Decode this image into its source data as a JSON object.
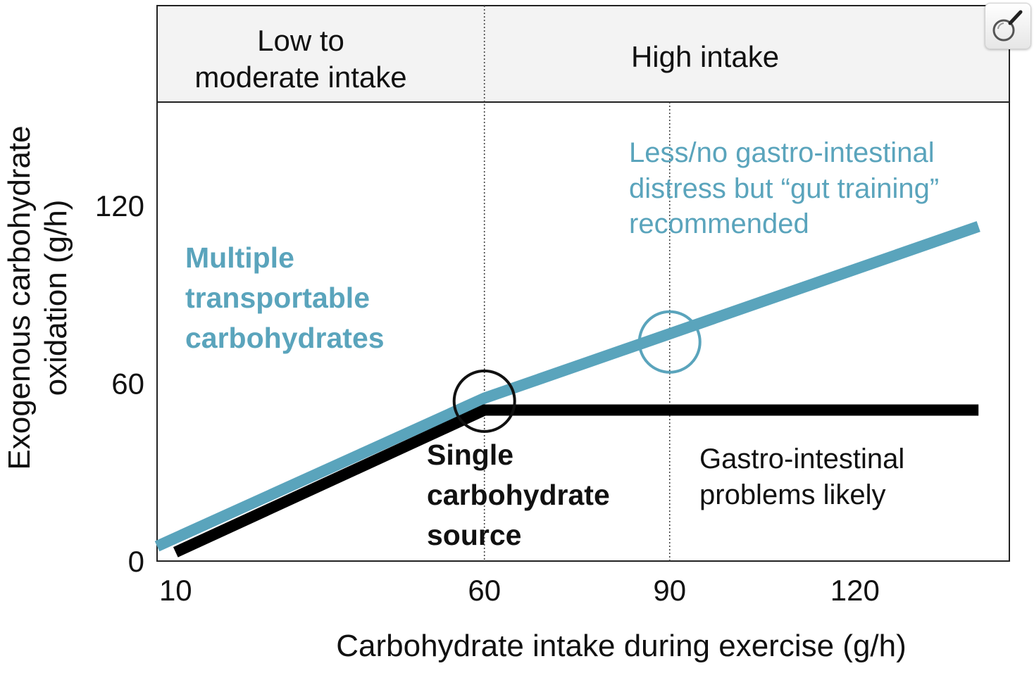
{
  "chart_data": {
    "type": "line",
    "xlabel": "Carbohydrate intake during exercise (g/h)",
    "ylabel_lines": [
      "Exogenous carbohydrate",
      "oxidation (g/h)"
    ],
    "x_ticks": [
      10,
      60,
      90,
      120
    ],
    "y_ticks": [
      0,
      60,
      120
    ],
    "xlim": [
      7,
      145
    ],
    "ylim": [
      0,
      155
    ],
    "grid": false,
    "series": [
      {
        "name": "Multiple transportable carbohydrates",
        "color": "#5aa4bc",
        "points": [
          [
            7,
            5
          ],
          [
            60,
            55
          ],
          [
            140,
            113
          ]
        ]
      },
      {
        "name": "Single carbohydrate source",
        "color": "#000000",
        "points": [
          [
            10,
            3
          ],
          [
            60,
            51
          ],
          [
            140,
            51
          ]
        ]
      }
    ],
    "reference_lines_x": [
      60,
      90
    ],
    "markers": [
      {
        "x": 60,
        "y": 54,
        "color": "#111111"
      },
      {
        "x": 90,
        "y": 74,
        "color": "#5aa4bc"
      }
    ],
    "regions": [
      {
        "label_lines": [
          "Low to",
          "moderate intake"
        ]
      },
      {
        "label_lines": [
          "High intake"
        ]
      }
    ],
    "annotations": {
      "multiple_label_lines": [
        "Multiple",
        "transportable",
        "carbohydrates"
      ],
      "single_label_lines": [
        "Single",
        "carbohydrate",
        "source"
      ],
      "less_distress_lines": [
        "Less/no gastro-intestinal",
        "distress but “gut training”",
        "recommended"
      ],
      "gi_problems_lines": [
        "Gastro-intestinal",
        "problems likely"
      ]
    }
  },
  "ui": {
    "zoom_icon": "magnifier-icon"
  }
}
